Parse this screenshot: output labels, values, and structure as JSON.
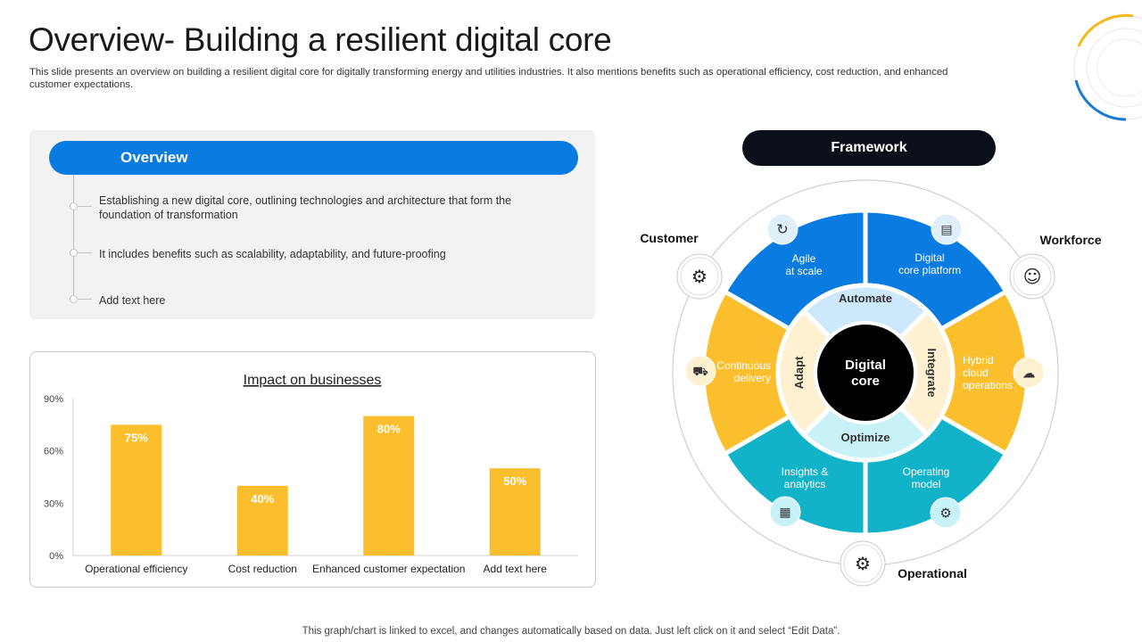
{
  "header": {
    "title": "Overview- Building a resilient digital core",
    "subtitle": "This slide presents an overview on building a resilient digital core for digitally transforming  energy and utilities industries. It also mentions benefits such as operational efficiency, cost reduction, and enhanced customer expectations."
  },
  "overview": {
    "label": "Overview",
    "items": [
      "Establishing a new digital core, outlining technologies and architecture that form the foundation of transformation",
      "It includes benefits such as scalability, adaptability, and future-proofing",
      "Add text here"
    ]
  },
  "chart_data": {
    "type": "bar",
    "title": "Impact on businesses",
    "categories": [
      "Operational efficiency",
      "Cost reduction",
      "Enhanced customer expectation",
      "Add text here"
    ],
    "values": [
      75,
      40,
      80,
      50
    ],
    "value_labels": [
      "75%",
      "40%",
      "80%",
      "50%"
    ],
    "yticks": [
      0,
      30,
      60,
      90
    ],
    "ytick_labels": [
      "0%",
      "30%",
      "60%",
      "90%"
    ],
    "ylim": [
      0,
      90
    ],
    "xlabel": "",
    "ylabel": "",
    "bar_color": "#fbbf2e",
    "grid": false,
    "legend": "none"
  },
  "framework": {
    "label": "Framework",
    "center": [
      "Digital",
      "core"
    ],
    "inner_ring": {
      "automate": "Automate",
      "integrate": "Integrate",
      "optimize": "Optimize",
      "adapt": "Adapt"
    },
    "segments": {
      "agile": [
        "Agile",
        "at scale"
      ],
      "platform": [
        "Digital",
        "core platform"
      ],
      "hybrid": [
        "Hybrid",
        "cloud",
        "operations"
      ],
      "operating": [
        "Operating",
        "model"
      ],
      "insights": [
        "Insights &",
        "analytics"
      ],
      "continuous": [
        "Continuous",
        "delivery"
      ]
    },
    "outer_labels": {
      "customer": "Customer",
      "workforce": "Workforce",
      "operational": "Operational"
    },
    "colors": {
      "blue": "#0a7be0",
      "yellow": "#fbbf2e",
      "teal": "#12b3c8",
      "center": "#000000"
    }
  },
  "footer": {
    "note": "This graph/chart is linked to excel, and changes automatically based on data. Just left click on it and select “Edit Data”."
  }
}
